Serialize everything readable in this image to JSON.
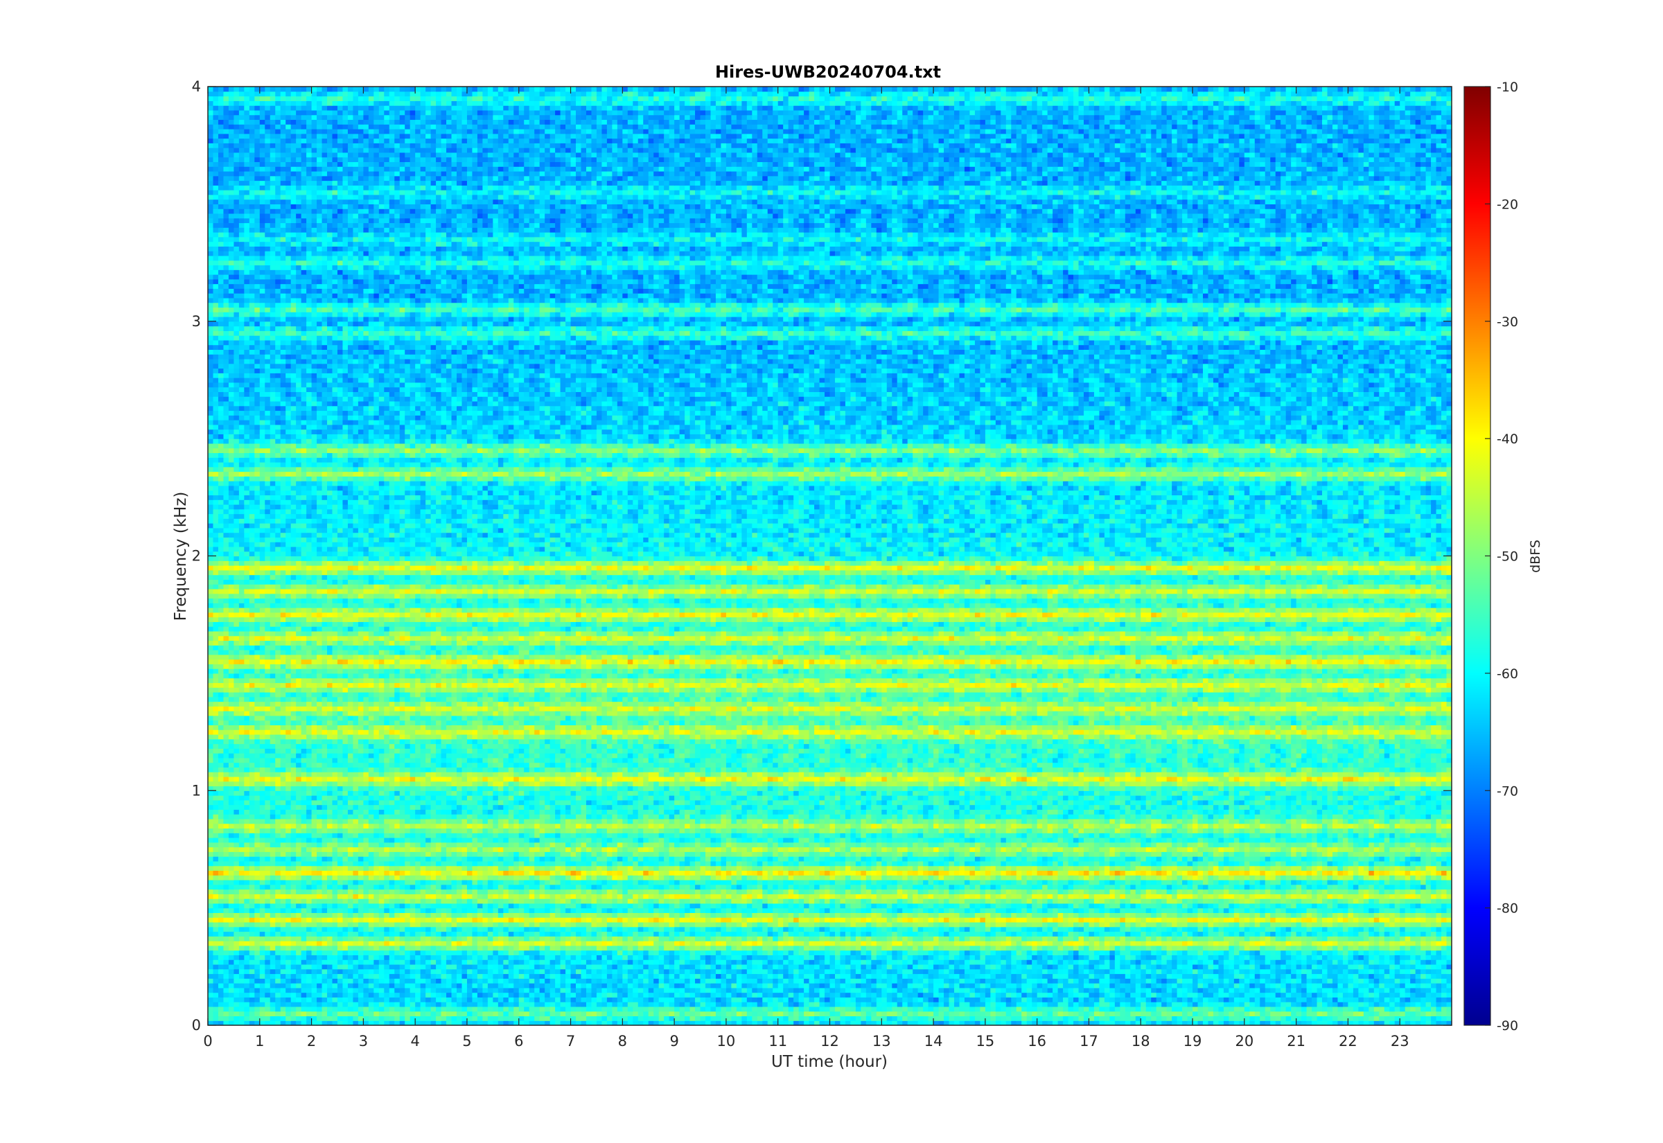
{
  "chart_data": {
    "type": "heatmap",
    "title": "Hires-UWB20240704.txt",
    "xlabel": "UT time (hour)",
    "ylabel": "Frequency (kHz)",
    "xlim": [
      0,
      24
    ],
    "ylim": [
      0,
      4
    ],
    "x_ticks": [
      "0",
      "1",
      "2",
      "3",
      "4",
      "5",
      "6",
      "7",
      "8",
      "9",
      "10",
      "11",
      "12",
      "13",
      "14",
      "15",
      "16",
      "17",
      "18",
      "19",
      "20",
      "21",
      "22",
      "23"
    ],
    "y_ticks": [
      "0",
      "1",
      "2",
      "3",
      "4"
    ],
    "colormap": "jet",
    "colorbar": {
      "label": "dBFS",
      "range": [
        -90,
        -10
      ],
      "ticks": [
        "-90",
        "-80",
        "-70",
        "-60",
        "-50",
        "-40",
        "-30",
        "-20",
        "-10"
      ]
    },
    "bands": [
      {
        "freq_khz": 3.95,
        "level_dbfs": -58
      },
      {
        "freq_khz": 3.55,
        "level_dbfs": -60
      },
      {
        "freq_khz": 3.35,
        "level_dbfs": -60
      },
      {
        "freq_khz": 3.25,
        "level_dbfs": -58
      },
      {
        "freq_khz": 3.05,
        "level_dbfs": -55
      },
      {
        "freq_khz": 2.95,
        "level_dbfs": -56
      },
      {
        "freq_khz": 2.45,
        "level_dbfs": -50
      },
      {
        "freq_khz": 2.35,
        "level_dbfs": -48
      },
      {
        "freq_khz": 1.95,
        "level_dbfs": -42
      },
      {
        "freq_khz": 1.85,
        "level_dbfs": -44
      },
      {
        "freq_khz": 1.75,
        "level_dbfs": -42
      },
      {
        "freq_khz": 1.65,
        "level_dbfs": -44
      },
      {
        "freq_khz": 1.55,
        "level_dbfs": -41
      },
      {
        "freq_khz": 1.45,
        "level_dbfs": -43
      },
      {
        "freq_khz": 1.35,
        "level_dbfs": -44
      },
      {
        "freq_khz": 1.25,
        "level_dbfs": -43
      },
      {
        "freq_khz": 1.05,
        "level_dbfs": -42
      },
      {
        "freq_khz": 0.85,
        "level_dbfs": -46
      },
      {
        "freq_khz": 0.75,
        "level_dbfs": -47
      },
      {
        "freq_khz": 0.65,
        "level_dbfs": -40
      },
      {
        "freq_khz": 0.55,
        "level_dbfs": -44
      },
      {
        "freq_khz": 0.45,
        "level_dbfs": -42
      },
      {
        "freq_khz": 0.35,
        "level_dbfs": -44
      },
      {
        "freq_khz": 0.05,
        "level_dbfs": -52
      }
    ]
  }
}
